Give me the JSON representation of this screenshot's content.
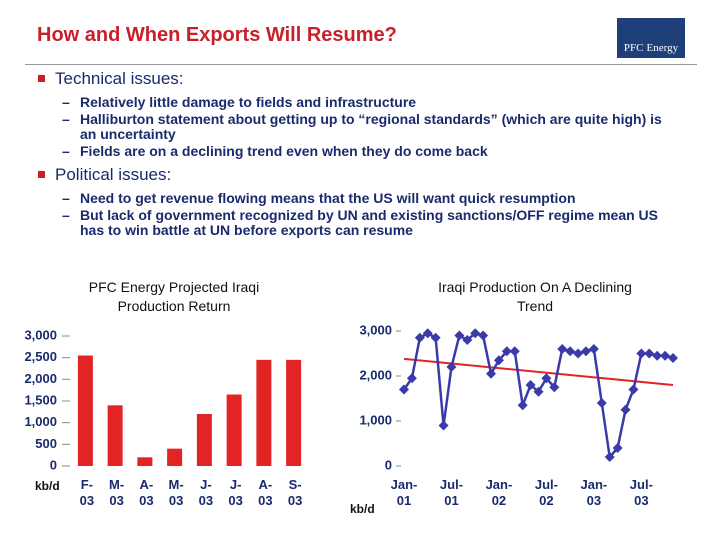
{
  "slide": {
    "title": "How and When Exports Will Resume?",
    "logo": [
      "PFC",
      "Energy"
    ],
    "sections": [
      {
        "heading": "Technical issues:",
        "items": [
          "Relatively little damage to fields and infrastructure",
          "Halliburton statement about getting up to “regional standards” (which are quite high) is an uncertainty",
          "Fields are on a declining trend even when they do come back"
        ]
      },
      {
        "heading": "Political issues:",
        "items": [
          "Need to get revenue flowing means that the US will want quick resumption",
          "But lack of government recognized by UN and existing sanctions/OFF regime mean US has to win battle at UN before exports can resume"
        ]
      }
    ]
  },
  "chart_data": [
    {
      "type": "bar",
      "title": "PFC Energy Projected Iraqi Production Return",
      "unit_label": "kb/d",
      "categories": [
        "F-\n03",
        "M-\n03",
        "A-\n03",
        "M-\n03",
        "J-\n03",
        "J-\n03",
        "A-\n03",
        "S-\n03"
      ],
      "values": [
        2550,
        1400,
        200,
        400,
        1200,
        1650,
        2450,
        2450
      ],
      "color": "#e32424",
      "ylim": [
        0,
        3000
      ],
      "yticks": [
        0,
        500,
        {
          "value": 1000,
          "label": "1,000"
        },
        {
          "value": 1500,
          "label": "1,500"
        },
        {
          "value": 2000,
          "label": "2,000"
        },
        {
          "value": 2500,
          "label": "2,500"
        },
        {
          "value": 3000,
          "label": "3,000"
        }
      ]
    },
    {
      "type": "line",
      "title": "Iraqi Production On A Declining Trend",
      "unit_label": "kb/d",
      "categories": [
        "Jan-\n01",
        null,
        null,
        null,
        null,
        null,
        "Jul-\n01",
        null,
        null,
        null,
        null,
        null,
        "Jan-\n02",
        null,
        null,
        null,
        null,
        null,
        "Jul-\n02",
        null,
        null,
        null,
        null,
        null,
        "Jan-\n03",
        null,
        null,
        null,
        null,
        null,
        "Jul-\n03",
        null,
        null,
        null,
        null
      ],
      "values": [
        1700,
        1950,
        2850,
        2950,
        2850,
        900,
        2200,
        2900,
        2800,
        2950,
        2900,
        2050,
        2350,
        2550,
        2550,
        1350,
        1800,
        1650,
        1950,
        1750,
        2600,
        2550,
        2500,
        2550,
        2600,
        1400,
        200,
        400,
        1250,
        1700,
        2500,
        2500,
        2450,
        2450,
        2400
      ],
      "color": "#3a3aa8",
      "trend": [
        2380,
        1800
      ],
      "trend_color": "#e32424",
      "ylim": [
        0,
        3100
      ],
      "yticks": [
        0,
        {
          "value": 1000,
          "label": "1,000"
        },
        {
          "value": 2000,
          "label": "2,000"
        },
        {
          "value": 3000,
          "label": "3,000"
        }
      ]
    }
  ]
}
